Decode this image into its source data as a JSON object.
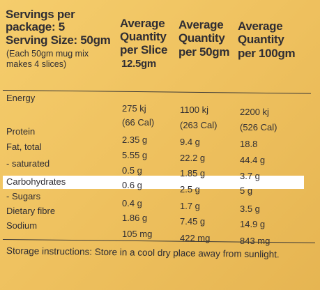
{
  "header": {
    "servings_line1": "Servings per",
    "servings_line2": "package:  5",
    "serving_size": "Serving Size: 50gm",
    "note_line1": "(Each 50gm mug mix",
    "note_line2": "makes 4 slices)",
    "col1_line1": "Average",
    "col1_line2": "Quantity",
    "col1_line3": "per Slice",
    "col1_line4": "12.5gm",
    "col2_line1": "Average",
    "col2_line2": "Quantity",
    "col2_line3": "per 50gm",
    "col3_line1": "Average",
    "col3_line2": "Quantity",
    "col3_line3": "per 100gm"
  },
  "rows": [
    {
      "label": "Energy",
      "values": [
        "275 kj",
        "1100 kj",
        "2200 kj"
      ]
    },
    {
      "label": "",
      "values": [
        "(66 Cal)",
        "(263 Cal)",
        "(526 Cal)"
      ]
    },
    {
      "label": "Protein",
      "values": [
        "2.35 g",
        "9.4 g",
        "18.8"
      ]
    },
    {
      "label": "Fat, total",
      "values": [
        "5.55 g",
        "22.2 g",
        "44.4 g"
      ]
    },
    {
      "label": "- saturated",
      "values": [
        "0.5 g",
        "1.85 g",
        "3.7 g"
      ]
    },
    {
      "label": "Carbohydrates",
      "values": [
        "0.6 g",
        "2.5 g",
        "5 g"
      ]
    },
    {
      "label": "- Sugars",
      "values": [
        "0.4 g",
        "1.7 g",
        "3.5 g"
      ]
    },
    {
      "label": "Dietary fibre",
      "values": [
        "1.86 g",
        "7.45 g",
        "14.9 g"
      ]
    },
    {
      "label": "Sodium",
      "values": [
        "105 mg",
        "422 mg",
        "843 mg"
      ]
    }
  ],
  "footer": {
    "storage": "Storage instructions: Store in a cool dry place away from sunlight."
  },
  "colors": {
    "background": "#f0c361",
    "highlight": "#ffffff",
    "text": "#2f2d33"
  }
}
